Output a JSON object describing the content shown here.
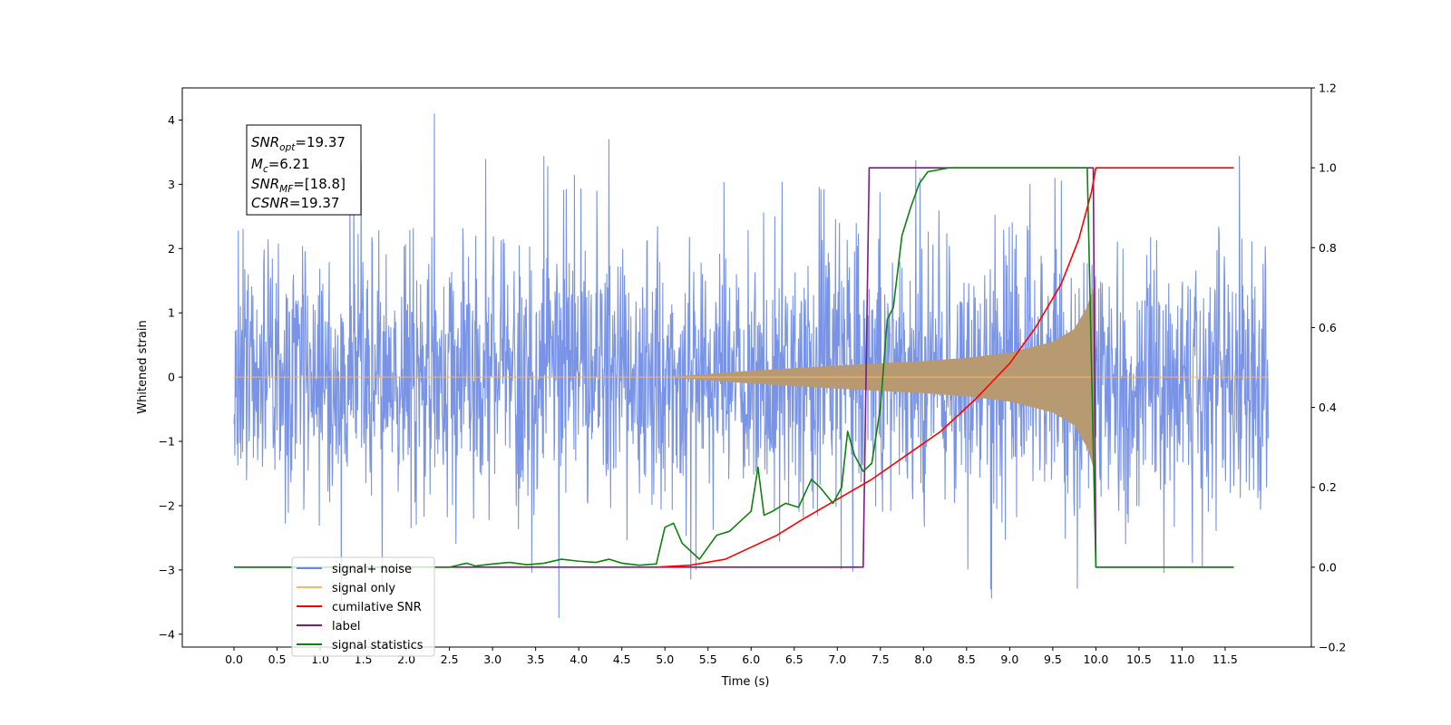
{
  "chart_data": {
    "type": "line",
    "xlabel": "Time (s)",
    "ylabel": "Whitened strain",
    "xlim": [
      -0.6,
      12.5
    ],
    "ylim": [
      -4.2,
      4.5
    ],
    "y2lim": [
      -0.2,
      1.2
    ],
    "xticks": [
      "0.0",
      "0.5",
      "1.0",
      "1.5",
      "2.0",
      "2.5",
      "3.0",
      "3.5",
      "4.0",
      "4.5",
      "5.0",
      "5.5",
      "6.0",
      "6.5",
      "7.0",
      "7.5",
      "8.0",
      "8.5",
      "9.0",
      "9.5",
      "10.0",
      "10.5",
      "11.0",
      "11.5"
    ],
    "yticks": [
      "−4",
      "−3",
      "−2",
      "−1",
      "0",
      "1",
      "2",
      "3",
      "4"
    ],
    "y2ticks": [
      "−0.2",
      "0.0",
      "0.2",
      "0.4",
      "0.6",
      "0.8",
      "1.0",
      "1.2"
    ],
    "grid": false,
    "legend_position": "lower-left",
    "annotation": {
      "lines": [
        {
          "main": "SNR",
          "sub": "opt",
          "rest": "=19.37"
        },
        {
          "main": "M",
          "sub": "c",
          "rest": "=6.21"
        },
        {
          "main": "SNR",
          "sub": "MF",
          "rest": "=[18.8]"
        },
        {
          "main": "CSNR",
          "sub": "",
          "rest": "=19.37"
        }
      ]
    },
    "series": [
      {
        "name": "signal+ noise",
        "color": "#6a88e3",
        "axis": "left",
        "kind": "noise",
        "t_range": [
          0.0,
          12.0
        ],
        "sigma": 1.05,
        "y_range": [
          -3.8,
          4.1
        ]
      },
      {
        "name": "signal only",
        "color": "#f4b86a",
        "axis": "left",
        "kind": "chirp",
        "fill_color": "#b89a72",
        "envelope": [
          [
            0.0,
            0.0
          ],
          [
            5.0,
            0.0
          ],
          [
            6.0,
            0.1
          ],
          [
            7.0,
            0.18
          ],
          [
            8.0,
            0.25
          ],
          [
            8.5,
            0.3
          ],
          [
            9.0,
            0.38
          ],
          [
            9.5,
            0.55
          ],
          [
            9.75,
            0.75
          ],
          [
            9.9,
            1.1
          ],
          [
            9.97,
            1.4
          ],
          [
            10.0,
            0.0
          ],
          [
            12.0,
            0.0
          ]
        ]
      },
      {
        "name": "cumilative SNR",
        "color": "#ff0000",
        "axis": "right",
        "points": [
          [
            4.9,
            0.0
          ],
          [
            5.3,
            0.005
          ],
          [
            5.7,
            0.02
          ],
          [
            6.0,
            0.05
          ],
          [
            6.3,
            0.08
          ],
          [
            6.6,
            0.12
          ],
          [
            7.0,
            0.17
          ],
          [
            7.4,
            0.22
          ],
          [
            7.8,
            0.28
          ],
          [
            8.2,
            0.34
          ],
          [
            8.6,
            0.42
          ],
          [
            9.0,
            0.51
          ],
          [
            9.3,
            0.6
          ],
          [
            9.6,
            0.71
          ],
          [
            9.8,
            0.82
          ],
          [
            9.95,
            0.94
          ],
          [
            10.0,
            1.0
          ],
          [
            11.6,
            1.0
          ]
        ]
      },
      {
        "name": "label",
        "color": "#7a1a8a",
        "axis": "right",
        "points": [
          [
            0.0,
            0.0
          ],
          [
            7.3,
            0.0
          ],
          [
            7.37,
            1.0
          ],
          [
            9.97,
            1.0
          ],
          [
            10.0,
            0.0
          ],
          [
            11.6,
            0.0
          ]
        ]
      },
      {
        "name": "signal statistics",
        "color": "#108010",
        "axis": "right",
        "points": [
          [
            0.0,
            0.0
          ],
          [
            2.5,
            0.0
          ],
          [
            2.6,
            0.005
          ],
          [
            2.7,
            0.01
          ],
          [
            2.8,
            0.003
          ],
          [
            3.0,
            0.008
          ],
          [
            3.2,
            0.012
          ],
          [
            3.4,
            0.006
          ],
          [
            3.6,
            0.01
          ],
          [
            3.8,
            0.02
          ],
          [
            4.0,
            0.015
          ],
          [
            4.2,
            0.012
          ],
          [
            4.35,
            0.02
          ],
          [
            4.5,
            0.01
          ],
          [
            4.7,
            0.005
          ],
          [
            4.9,
            0.008
          ],
          [
            5.0,
            0.1
          ],
          [
            5.1,
            0.11
          ],
          [
            5.2,
            0.06
          ],
          [
            5.3,
            0.04
          ],
          [
            5.4,
            0.02
          ],
          [
            5.5,
            0.05
          ],
          [
            5.6,
            0.08
          ],
          [
            5.75,
            0.09
          ],
          [
            5.9,
            0.12
          ],
          [
            6.0,
            0.14
          ],
          [
            6.08,
            0.25
          ],
          [
            6.15,
            0.13
          ],
          [
            6.25,
            0.14
          ],
          [
            6.4,
            0.16
          ],
          [
            6.55,
            0.15
          ],
          [
            6.7,
            0.22
          ],
          [
            6.8,
            0.2
          ],
          [
            6.95,
            0.16
          ],
          [
            7.05,
            0.2
          ],
          [
            7.12,
            0.34
          ],
          [
            7.2,
            0.28
          ],
          [
            7.3,
            0.24
          ],
          [
            7.4,
            0.26
          ],
          [
            7.5,
            0.4
          ],
          [
            7.58,
            0.62
          ],
          [
            7.65,
            0.65
          ],
          [
            7.75,
            0.83
          ],
          [
            7.85,
            0.9
          ],
          [
            7.95,
            0.96
          ],
          [
            8.05,
            0.99
          ],
          [
            8.3,
            1.0
          ],
          [
            9.9,
            1.0
          ],
          [
            10.0,
            0.0
          ],
          [
            11.6,
            0.0
          ]
        ]
      }
    ]
  }
}
